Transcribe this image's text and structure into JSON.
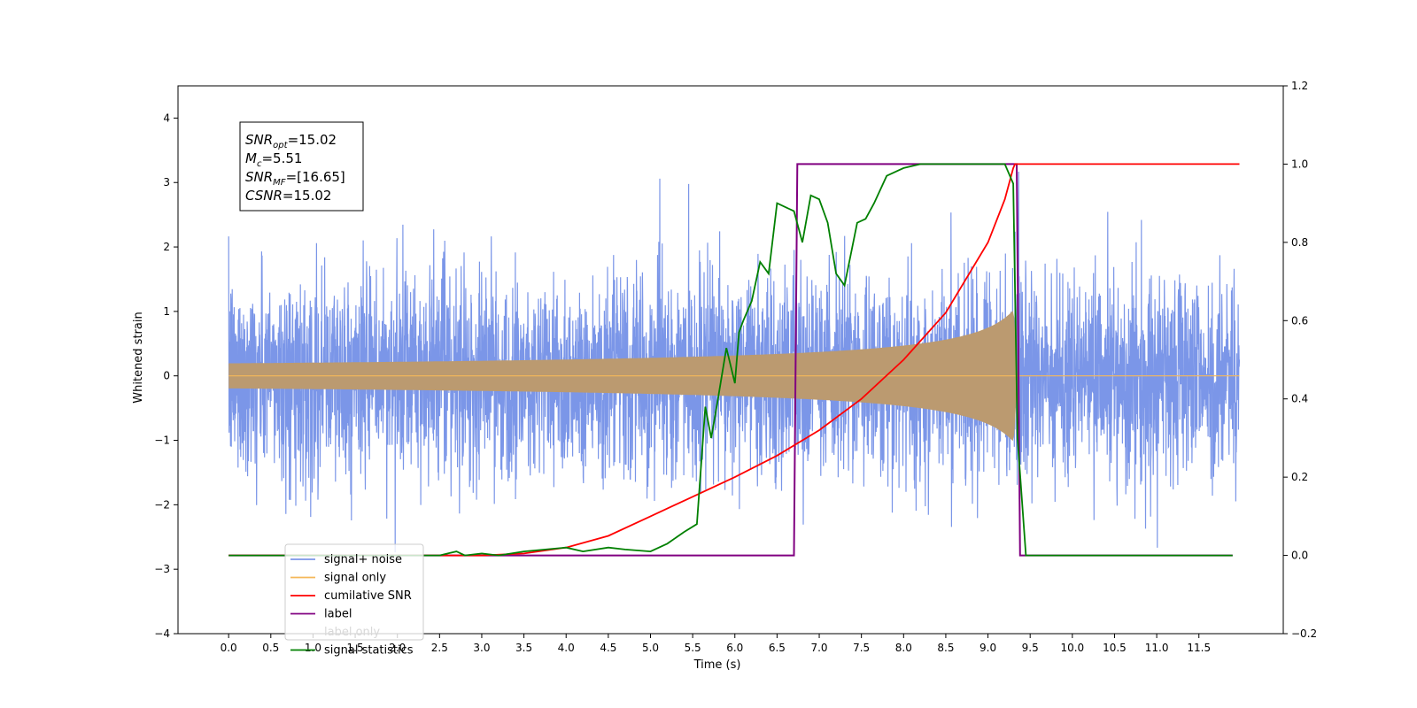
{
  "chart_data": {
    "type": "line",
    "xlabel": "Time (s)",
    "ylabel": "Whitened strain",
    "xlim": [
      -0.6,
      12.5
    ],
    "ylim": [
      -4,
      4.5
    ],
    "y2lim": [
      -0.2,
      1.2
    ],
    "x_ticks": [
      "0.0",
      "0.5",
      "1.0",
      "1.5",
      "2.0",
      "2.5",
      "3.0",
      "3.5",
      "4.0",
      "4.5",
      "5.0",
      "5.5",
      "6.0",
      "6.5",
      "7.0",
      "7.5",
      "8.0",
      "8.5",
      "9.0",
      "9.5",
      "10.0",
      "10.5",
      "11.0",
      "11.5"
    ],
    "y_ticks": [
      "−4",
      "−3",
      "−2",
      "−1",
      "0",
      "1",
      "2",
      "3",
      "4"
    ],
    "y2_ticks": [
      "−0.2",
      "0.0",
      "0.2",
      "0.4",
      "0.6",
      "0.8",
      "1.0",
      "1.2"
    ],
    "grid": false,
    "legend_position": "lower-left",
    "annotation": {
      "lines": [
        {
          "sym": "SNR",
          "sub": "opt",
          "val": "=15.02"
        },
        {
          "sym": "M",
          "sub": "c",
          "val": "=5.51"
        },
        {
          "sym": "SNR",
          "sub": "MF",
          "val": "=[16.65]"
        },
        {
          "sym": "CSNR",
          "sub": "",
          "val": "=15.02"
        }
      ]
    },
    "colors": {
      "noise": "#7b96e8",
      "signal": "#f5b85a",
      "signal_fill": "#bb9a70",
      "csnr": "#ff0000",
      "label": "#800080",
      "stats": "#008000"
    },
    "series": [
      {
        "name": "signal+ noise",
        "axis": "left",
        "sigma": 0.78,
        "t_start": 0.0,
        "t_end": 11.98
      },
      {
        "name": "signal only",
        "axis": "left",
        "t_start": 0.0,
        "t_end": 11.98,
        "merger_time": 9.3,
        "peak_amplitude": 1.2
      },
      {
        "name": "cumilative SNR",
        "axis": "right",
        "x": [
          0,
          3.0,
          3.5,
          4.0,
          4.5,
          5.0,
          5.5,
          6.0,
          6.5,
          7.0,
          7.5,
          8.0,
          8.5,
          9.0,
          9.2,
          9.3,
          9.32,
          11.98
        ],
        "y": [
          0,
          0.0,
          0.005,
          0.02,
          0.05,
          0.1,
          0.15,
          0.2,
          0.255,
          0.32,
          0.4,
          0.5,
          0.62,
          0.8,
          0.91,
          0.99,
          1.0,
          1.0
        ]
      },
      {
        "name": "label",
        "axis": "right",
        "x": [
          0,
          6.7,
          6.74,
          9.34,
          9.38,
          11.9
        ],
        "y": [
          0,
          0,
          1,
          1,
          0,
          0
        ]
      },
      {
        "name": "label only",
        "axis": "right",
        "hidden": true,
        "x": [],
        "y": []
      },
      {
        "name": "signal statistics",
        "axis": "right",
        "x": [
          0,
          2.5,
          2.7,
          2.8,
          3.0,
          3.2,
          3.5,
          4.0,
          4.2,
          4.5,
          4.7,
          5.0,
          5.2,
          5.4,
          5.55,
          5.65,
          5.72,
          5.8,
          5.9,
          6.0,
          6.05,
          6.1,
          6.2,
          6.3,
          6.4,
          6.5,
          6.6,
          6.7,
          6.8,
          6.9,
          7.0,
          7.1,
          7.2,
          7.3,
          7.45,
          7.55,
          7.65,
          7.8,
          8.0,
          8.2,
          8.5,
          9.0,
          9.2,
          9.3,
          9.35,
          9.45,
          9.5,
          11.9
        ],
        "y": [
          0,
          0,
          0.01,
          0.0,
          0.005,
          0.0,
          0.01,
          0.02,
          0.01,
          0.02,
          0.015,
          0.01,
          0.03,
          0.06,
          0.08,
          0.38,
          0.3,
          0.4,
          0.53,
          0.44,
          0.57,
          0.6,
          0.65,
          0.75,
          0.72,
          0.9,
          0.89,
          0.88,
          0.8,
          0.92,
          0.91,
          0.85,
          0.72,
          0.69,
          0.85,
          0.86,
          0.9,
          0.97,
          0.99,
          1.0,
          1.0,
          1.0,
          1.0,
          0.95,
          0.3,
          0.0,
          0.0,
          0.0
        ]
      }
    ]
  }
}
